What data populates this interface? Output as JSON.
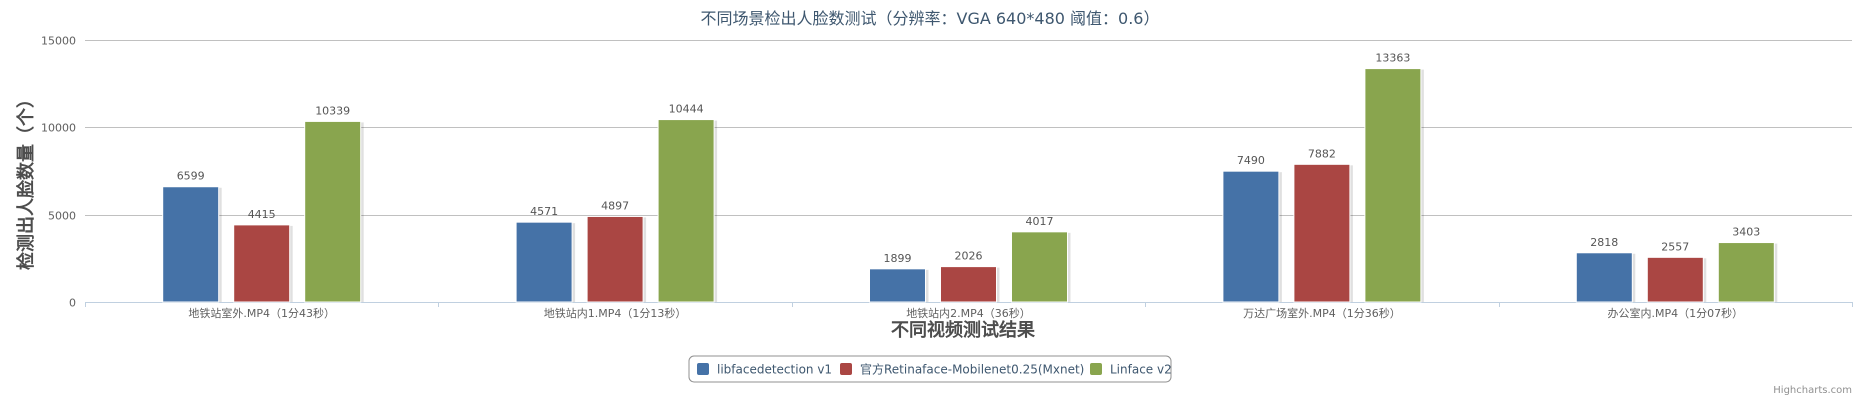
{
  "chart_data": {
    "type": "bar",
    "title": "不同场景检出人脸数测试（分辨率：VGA 640*480 阈值：0.6）",
    "xlabel": "不同视频测试结果",
    "ylabel": "检测出人脸数量（个）",
    "categories": [
      "地铁站室外.MP4（1分43秒）",
      "地铁站内1.MP4（1分13秒）",
      "地铁站内2.MP4（36秒）",
      "万达广场室外.MP4（1分36秒）",
      "办公室内.MP4（1分07秒）"
    ],
    "series": [
      {
        "name": "libfacedetection v1",
        "color": "#4572a7",
        "values": [
          6599,
          4571,
          1899,
          7490,
          2818
        ]
      },
      {
        "name": "官方Retinaface-Mobilenet0.25(Mxnet)",
        "color": "#aa4643",
        "values": [
          4415,
          4897,
          2026,
          7882,
          2557
        ]
      },
      {
        "name": "Linface v2",
        "color": "#89a54e",
        "values": [
          10339,
          10444,
          4017,
          13363,
          3403
        ]
      }
    ],
    "ylim": [
      0,
      15000
    ],
    "yticks": [
      0,
      5000,
      10000,
      15000
    ],
    "grid": true,
    "legend_position": "bottom-center",
    "credits": "Highcharts.com"
  }
}
